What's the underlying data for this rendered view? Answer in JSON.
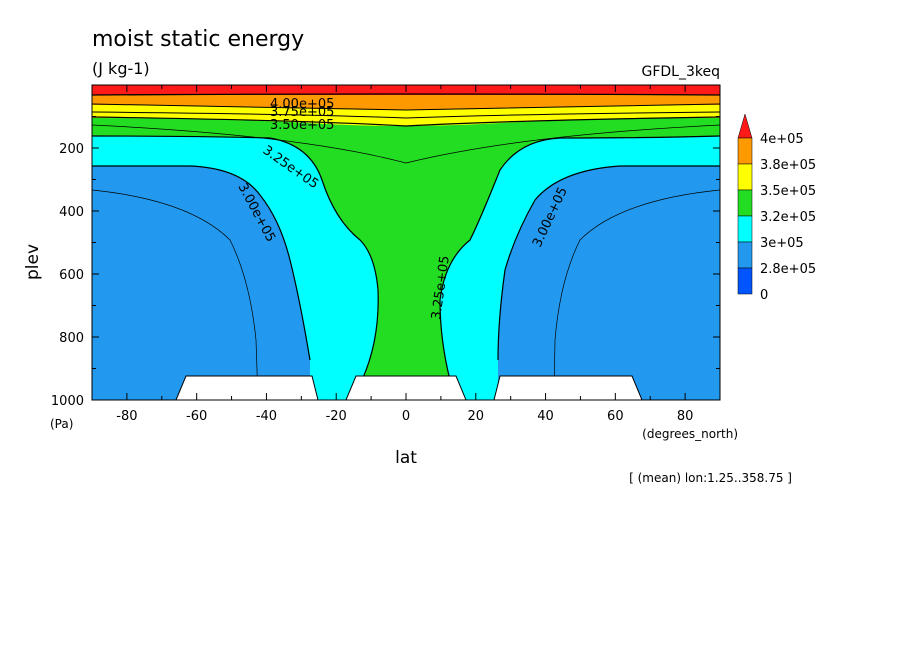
{
  "chart_data": {
    "type": "contour",
    "title": "moist static energy",
    "units": "(J kg-1)",
    "model": "GFDL_3keq",
    "xlabel": "lat",
    "xunits": "(degrees_north)",
    "ylabel": "plev",
    "yunits": "(Pa)",
    "footnote": "[ (mean) lon:1.25..358.75 ]",
    "xlim": [
      -90,
      90
    ],
    "ylim": [
      1000,
      0
    ],
    "x_ticks": [
      -80,
      -60,
      -40,
      -20,
      0,
      20,
      40,
      60,
      80
    ],
    "y_ticks": [
      200,
      400,
      600,
      800,
      1000
    ],
    "colorbar": {
      "labels": [
        "4e+05",
        "3.8e+05",
        "3.5e+05",
        "3.2e+05",
        "3e+05",
        "2.8e+05",
        "0"
      ],
      "colors": [
        "#ff1a1a",
        "#ff9900",
        "#ffff00",
        "#22dd22",
        "#00ffff",
        "#2299ee",
        "#0055ff"
      ]
    },
    "contour_labels": [
      "4.00e+05",
      "3.75e+05",
      "3.50e+05",
      "3.25e+05",
      "3.00e+05",
      "3.25e+05",
      "3.00e+05"
    ],
    "regions": [
      {
        "name": "red",
        "color": "#ff1a1a",
        "pressure_top": 0,
        "pressure_bottom": 30
      },
      {
        "name": "orange",
        "color": "#ff9900",
        "pressure_top": 30,
        "pressure_bottom": 80
      },
      {
        "name": "yellow",
        "color": "#ffff00",
        "pressure_top": 80,
        "pressure_bottom": 120
      },
      {
        "name": "green",
        "color": "#22dd22",
        "pressure_top": 120,
        "pressure_bottom": 1000
      },
      {
        "name": "cyan",
        "color": "#00ffff",
        "note": "flanks of the equatorial green column"
      },
      {
        "name": "blue",
        "color": "#2299ee",
        "note": "subtropics and extratropics, below about 350 Pa"
      }
    ],
    "masked_columns": [
      [
        -65,
        -26
      ],
      [
        -16,
        16
      ],
      [
        26,
        65
      ]
    ]
  }
}
